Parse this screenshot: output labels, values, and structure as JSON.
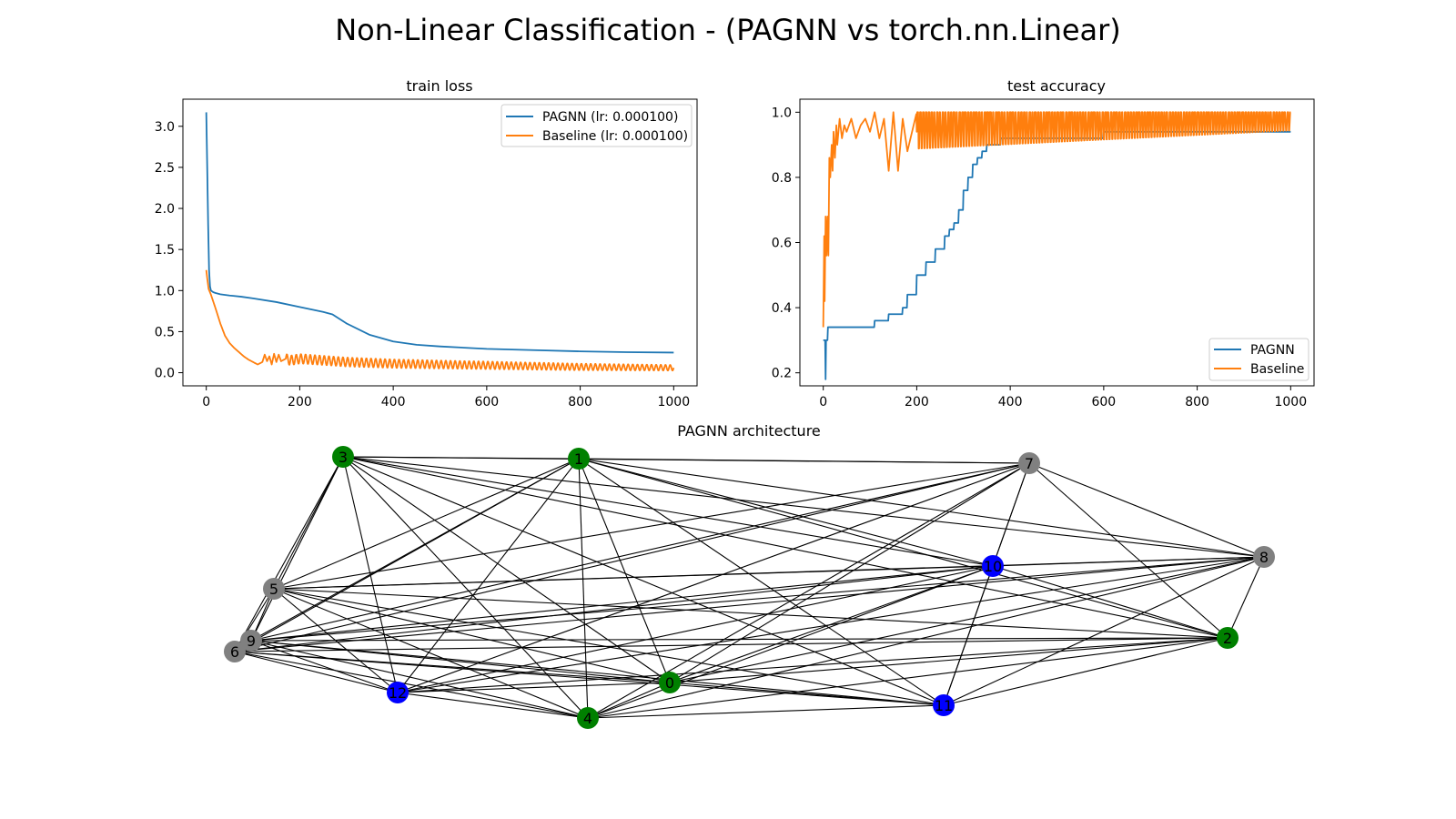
{
  "figure": {
    "suptitle": "Non-Linear Classification - (PAGNN vs torch.nn.Linear)"
  },
  "colors": {
    "pagnn": "#1f77b4",
    "baseline": "#ff7f0e",
    "node_green": "#008000",
    "node_blue": "#0000ff",
    "node_gray": "#808080",
    "edge": "#000000"
  },
  "chart_data": [
    {
      "type": "line",
      "title": "train loss",
      "xlabel": "",
      "ylabel": "",
      "xlim": [
        -50,
        1050
      ],
      "ylim": [
        -0.16,
        3.33
      ],
      "xticks": [
        0,
        200,
        400,
        600,
        800,
        1000
      ],
      "yticks": [
        0.0,
        0.5,
        1.0,
        1.5,
        2.0,
        2.5,
        3.0
      ],
      "ytick_labels": [
        "0.0",
        "0.5",
        "1.0",
        "1.5",
        "2.0",
        "2.5",
        "3.0"
      ],
      "grid": false,
      "legend": {
        "position": "top-right",
        "entries": [
          "PAGNN (lr: 0.000100)",
          "Baseline (lr: 0.000100)"
        ]
      },
      "series": [
        {
          "name": "PAGNN (lr: 0.000100)",
          "color": "pagnn",
          "x": [
            0,
            2,
            4,
            6,
            8,
            10,
            15,
            20,
            30,
            50,
            75,
            100,
            150,
            200,
            250,
            270,
            300,
            350,
            400,
            450,
            500,
            600,
            700,
            800,
            900,
            1000
          ],
          "y": [
            3.17,
            2.5,
            1.8,
            1.25,
            1.05,
            1.0,
            0.98,
            0.97,
            0.955,
            0.94,
            0.925,
            0.905,
            0.86,
            0.8,
            0.74,
            0.71,
            0.6,
            0.46,
            0.38,
            0.34,
            0.32,
            0.29,
            0.275,
            0.26,
            0.25,
            0.245
          ]
        },
        {
          "name": "Baseline (lr: 0.000100)",
          "color": "baseline",
          "x": [
            0,
            2,
            5,
            10,
            20,
            30,
            40,
            50,
            60,
            70,
            80,
            90,
            100,
            110,
            120,
            125,
            130,
            135,
            140,
            145,
            150,
            155,
            160,
            170,
            180,
            200,
            250,
            300,
            400,
            500,
            600,
            700,
            800,
            900,
            1000
          ],
          "y": [
            1.25,
            1.15,
            1.02,
            0.95,
            0.78,
            0.6,
            0.45,
            0.36,
            0.3,
            0.25,
            0.2,
            0.16,
            0.13,
            0.1,
            0.13,
            0.22,
            0.14,
            0.2,
            0.1,
            0.23,
            0.13,
            0.22,
            0.14,
            0.17,
            0.15,
            0.17,
            0.15,
            0.13,
            0.11,
            0.1,
            0.09,
            0.08,
            0.07,
            0.065,
            0.06
          ],
          "oscillation": {
            "from": 170,
            "period": 10,
            "amplitude_start": 0.06,
            "amplitude_end": 0.035
          }
        }
      ]
    },
    {
      "type": "line",
      "title": "test accuracy",
      "xlabel": "",
      "ylabel": "",
      "xlim": [
        -50,
        1050
      ],
      "ylim": [
        0.16,
        1.04
      ],
      "xticks": [
        0,
        200,
        400,
        600,
        800,
        1000
      ],
      "yticks": [
        0.2,
        0.4,
        0.6,
        0.8,
        1.0
      ],
      "ytick_labels": [
        "0.2",
        "0.4",
        "0.6",
        "0.8",
        "1.0"
      ],
      "grid": false,
      "legend": {
        "position": "bottom-right",
        "entries": [
          "PAGNN",
          "Baseline"
        ]
      },
      "series": [
        {
          "name": "PAGNN",
          "color": "pagnn",
          "step": true,
          "x": [
            0,
            3,
            5,
            6,
            10,
            20,
            60,
            100,
            110,
            140,
            170,
            180,
            200,
            220,
            240,
            260,
            270,
            280,
            290,
            300,
            310,
            320,
            330,
            340,
            350,
            380,
            420,
            500,
            550,
            600,
            620,
            700,
            800,
            1000
          ],
          "y": [
            0.3,
            0.3,
            0.18,
            0.3,
            0.34,
            0.34,
            0.34,
            0.34,
            0.36,
            0.38,
            0.4,
            0.44,
            0.5,
            0.54,
            0.58,
            0.62,
            0.64,
            0.66,
            0.7,
            0.76,
            0.8,
            0.84,
            0.86,
            0.88,
            0.9,
            0.92,
            0.92,
            0.92,
            0.92,
            0.94,
            0.94,
            0.94,
            0.94,
            0.94
          ]
        },
        {
          "name": "Baseline",
          "color": "baseline",
          "x": [
            0,
            2,
            3,
            5,
            7,
            9,
            11,
            13,
            15,
            18,
            20,
            22,
            25,
            28,
            30,
            35,
            40,
            45,
            50,
            60,
            70,
            80,
            90,
            100,
            110,
            120,
            130,
            140,
            150,
            160,
            170,
            180,
            200
          ],
          "y": [
            0.34,
            0.62,
            0.42,
            0.68,
            0.56,
            0.68,
            0.56,
            0.86,
            0.8,
            0.9,
            0.82,
            0.94,
            0.86,
            0.96,
            0.9,
            0.98,
            0.92,
            0.96,
            0.94,
            0.98,
            0.92,
            0.96,
            0.98,
            0.94,
            1.0,
            0.92,
            0.98,
            0.82,
            1.0,
            0.82,
            0.98,
            0.88,
            1.0
          ],
          "oscillation": {
            "from": 200,
            "period": 6,
            "low_start": 0.88,
            "low_end": 0.94,
            "high": 1.0
          }
        }
      ]
    }
  ],
  "graph": {
    "title": "PAGNN architecture",
    "nodes": [
      {
        "id": "0",
        "color": "node_green"
      },
      {
        "id": "1",
        "color": "node_green"
      },
      {
        "id": "2",
        "color": "node_green"
      },
      {
        "id": "3",
        "color": "node_green"
      },
      {
        "id": "4",
        "color": "node_green"
      },
      {
        "id": "5",
        "color": "node_gray"
      },
      {
        "id": "6",
        "color": "node_gray"
      },
      {
        "id": "7",
        "color": "node_gray"
      },
      {
        "id": "8",
        "color": "node_gray"
      },
      {
        "id": "9",
        "color": "node_gray"
      },
      {
        "id": "10",
        "color": "node_blue"
      },
      {
        "id": "11",
        "color": "node_blue"
      },
      {
        "id": "12",
        "color": "node_blue"
      }
    ],
    "edges": [
      [
        "3",
        "1"
      ],
      [
        "3",
        "7"
      ],
      [
        "3",
        "5"
      ],
      [
        "3",
        "9"
      ],
      [
        "3",
        "6"
      ],
      [
        "3",
        "12"
      ],
      [
        "3",
        "4"
      ],
      [
        "3",
        "0"
      ],
      [
        "3",
        "10"
      ],
      [
        "3",
        "8"
      ],
      [
        "3",
        "2"
      ],
      [
        "3",
        "11"
      ],
      [
        "1",
        "7"
      ],
      [
        "1",
        "5"
      ],
      [
        "1",
        "9"
      ],
      [
        "1",
        "6"
      ],
      [
        "1",
        "12"
      ],
      [
        "1",
        "4"
      ],
      [
        "1",
        "0"
      ],
      [
        "1",
        "10"
      ],
      [
        "1",
        "8"
      ],
      [
        "1",
        "2"
      ],
      [
        "1",
        "11"
      ],
      [
        "7",
        "5"
      ],
      [
        "7",
        "9"
      ],
      [
        "7",
        "6"
      ],
      [
        "7",
        "12"
      ],
      [
        "7",
        "4"
      ],
      [
        "7",
        "0"
      ],
      [
        "7",
        "10"
      ],
      [
        "7",
        "8"
      ],
      [
        "7",
        "2"
      ],
      [
        "7",
        "11"
      ],
      [
        "5",
        "9"
      ],
      [
        "5",
        "6"
      ],
      [
        "5",
        "12"
      ],
      [
        "5",
        "4"
      ],
      [
        "5",
        "0"
      ],
      [
        "5",
        "10"
      ],
      [
        "5",
        "8"
      ],
      [
        "5",
        "2"
      ],
      [
        "5",
        "11"
      ],
      [
        "9",
        "6"
      ],
      [
        "9",
        "12"
      ],
      [
        "9",
        "4"
      ],
      [
        "9",
        "0"
      ],
      [
        "9",
        "10"
      ],
      [
        "9",
        "8"
      ],
      [
        "9",
        "2"
      ],
      [
        "9",
        "11"
      ],
      [
        "6",
        "12"
      ],
      [
        "6",
        "4"
      ],
      [
        "6",
        "0"
      ],
      [
        "6",
        "10"
      ],
      [
        "6",
        "8"
      ],
      [
        "6",
        "2"
      ],
      [
        "6",
        "11"
      ],
      [
        "12",
        "4"
      ],
      [
        "12",
        "0"
      ],
      [
        "12",
        "10"
      ],
      [
        "12",
        "8"
      ],
      [
        "12",
        "2"
      ],
      [
        "4",
        "0"
      ],
      [
        "4",
        "10"
      ],
      [
        "4",
        "8"
      ],
      [
        "4",
        "2"
      ],
      [
        "4",
        "11"
      ],
      [
        "0",
        "10"
      ],
      [
        "0",
        "8"
      ],
      [
        "0",
        "2"
      ],
      [
        "0",
        "11"
      ],
      [
        "10",
        "8"
      ],
      [
        "10",
        "2"
      ],
      [
        "10",
        "11"
      ],
      [
        "11",
        "8"
      ],
      [
        "11",
        "2"
      ],
      [
        "8",
        "2"
      ]
    ]
  }
}
